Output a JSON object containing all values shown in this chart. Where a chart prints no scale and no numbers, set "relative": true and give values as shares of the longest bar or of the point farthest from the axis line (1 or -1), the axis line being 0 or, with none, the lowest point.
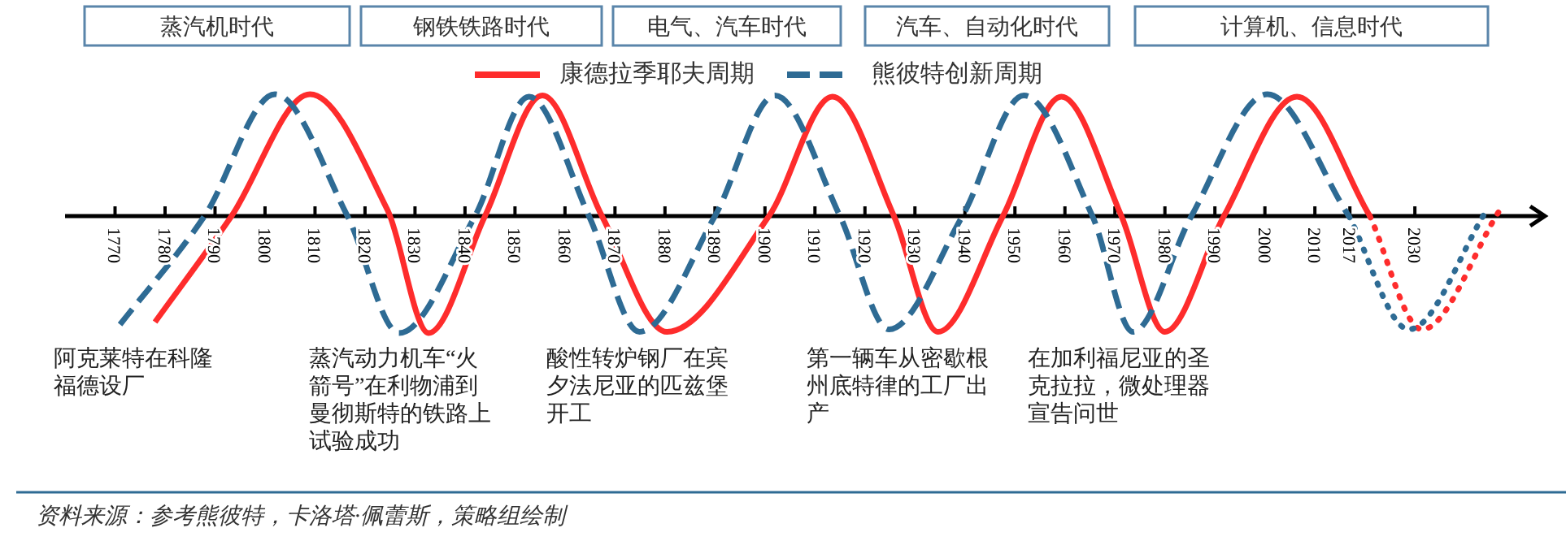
{
  "chart_data": {
    "type": "line",
    "relative": true,
    "xlim": [
      1760,
      2056
    ],
    "xticks": [
      1770,
      1780,
      1790,
      1800,
      1810,
      1820,
      1830,
      1840,
      1850,
      1860,
      1870,
      1880,
      1890,
      1900,
      1910,
      1920,
      1930,
      1940,
      1950,
      1960,
      1970,
      1980,
      1990,
      2000,
      2010,
      2017,
      2030
    ],
    "legend": "top",
    "series": [
      {
        "name": "康德拉季耶夫周期",
        "color": "#fe2c2c",
        "line_style": "solid",
        "x": [
          1778,
          1793.3,
          1809,
          1824.5,
          1832.7,
          1844,
          1855.5,
          1867.4,
          1880.4,
          1900.8,
          1913.5,
          1925.8,
          1934.6,
          1947.6,
          1959.3,
          1971.3,
          1980,
          1991.8,
          2006.4,
          2021
        ],
        "values": [
          -0.87,
          0,
          1,
          0.05,
          -0.96,
          0,
          0.99,
          0,
          -0.95,
          0,
          0.98,
          0,
          -0.95,
          0,
          0.98,
          0,
          -0.95,
          0,
          0.98,
          0
        ]
      },
      {
        "color": "#fe2c2c",
        "line_style": "dotted",
        "x": [
          2021,
          2031.4,
          2047
        ],
        "values": [
          0,
          -0.93,
          0.05
        ]
      },
      {
        "name": "熊彼特创新周期",
        "color": "#2e6b94",
        "line_style": "dashed",
        "x": [
          1771,
          1787.9,
          1802,
          1816.5,
          1826.8,
          1842,
          1852.8,
          1864.8,
          1874.9,
          1890,
          1902,
          1915,
          1924.8,
          1939.5,
          1951.8,
          1965.5,
          1973.6,
          1985.3,
          2000.5,
          2016.8
        ],
        "values": [
          -0.89,
          0,
          1,
          0,
          -0.96,
          0,
          0.98,
          0,
          -0.95,
          0,
          0.99,
          0,
          -0.93,
          0,
          0.99,
          0,
          -0.95,
          0,
          1,
          0
        ]
      },
      {
        "color": "#2e6b94",
        "line_style": "dotted",
        "x": [
          2016.8,
          2028.8,
          2044.4
        ],
        "values": [
          0,
          -0.93,
          0.05
        ]
      }
    ],
    "annotations": [
      "蒸汽机时代",
      "钢铁铁路时代",
      "电气、汽车时代",
      "汽车、自动化时代",
      "计算机、信息时代",
      "阿克莱特在科隆福德设厂",
      "蒸汽动力机车“火箭号”在利物浦到曼彻斯特的铁路上试验成功",
      "酸性转炉钢厂在宾夕法尼亚的匹兹堡开工",
      "第一辆车从密歇根州底特律的工厂出产",
      "在加利福尼亚的圣克拉拉，微处理器宣告问世",
      "资料来源：参考熊彼特，卡洛塔·佩蕾斯，策略组绘制"
    ]
  }
}
